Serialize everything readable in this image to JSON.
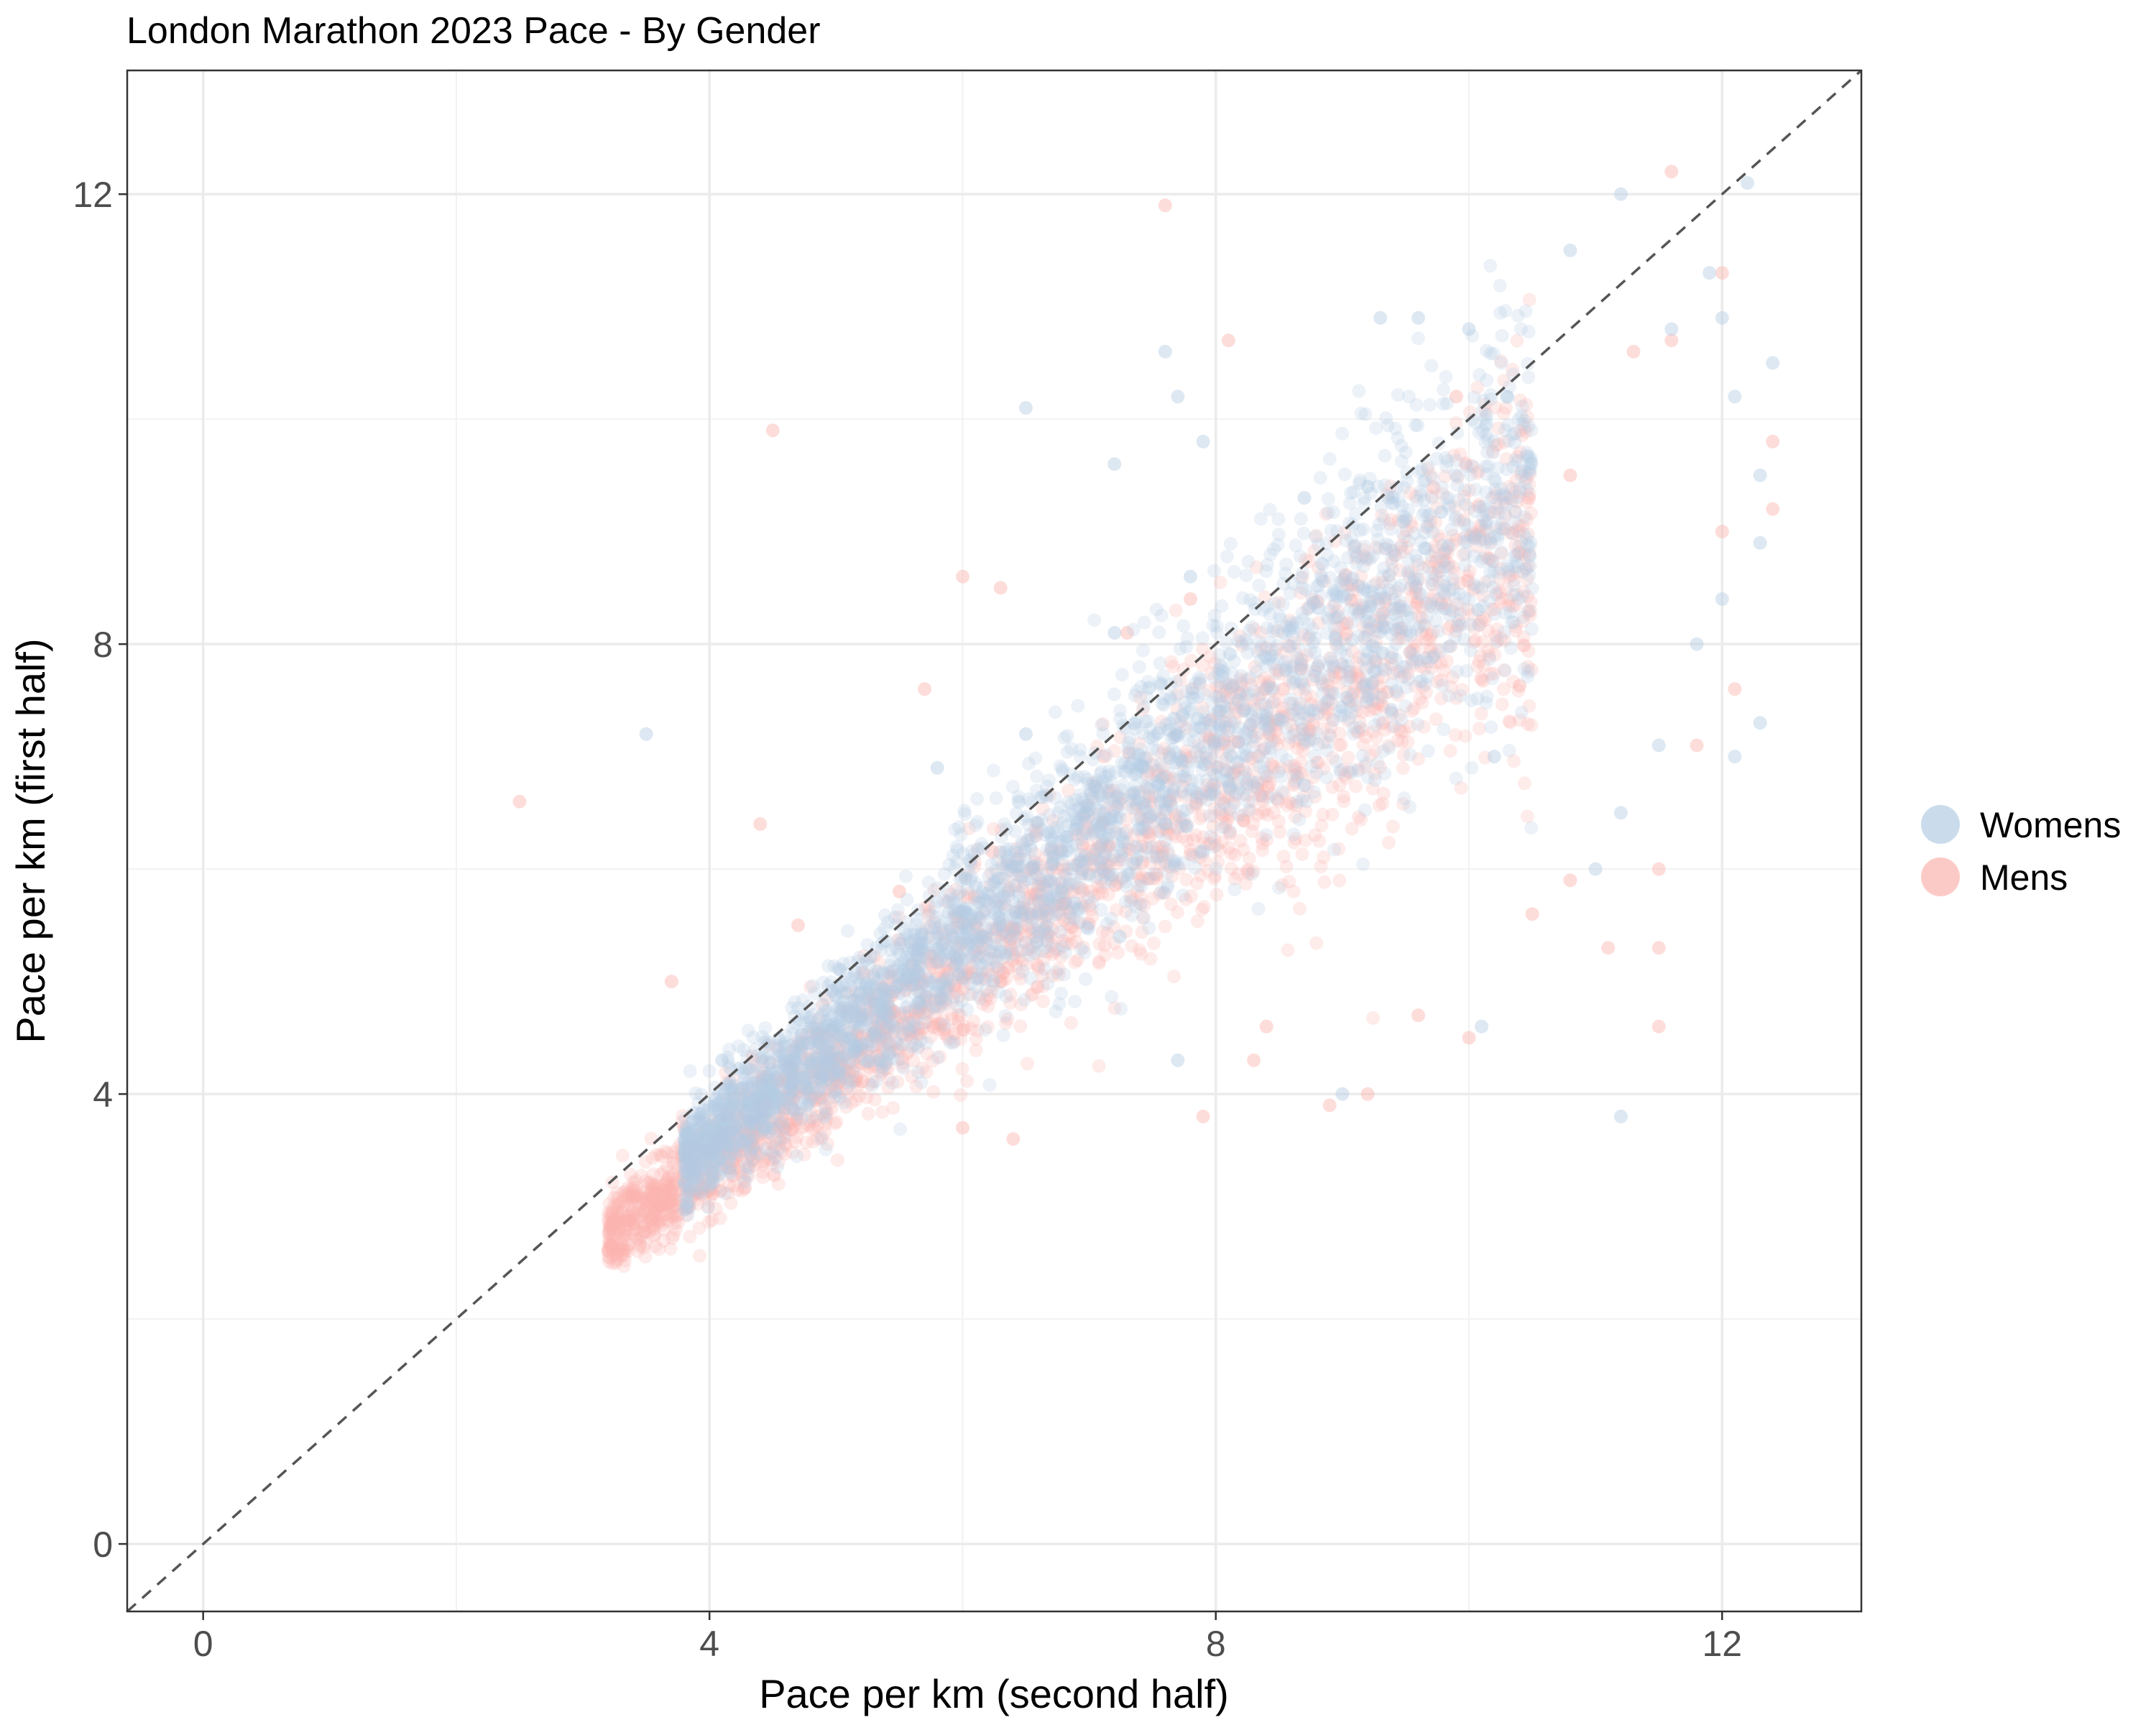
{
  "chart_data": {
    "type": "scatter",
    "title": "London Marathon 2023 Pace - By Gender",
    "xlabel": "Pace per km (second half)",
    "ylabel": "Pace per km (first half)",
    "xlim": [
      -0.6,
      13.1
    ],
    "ylim": [
      -0.6,
      13.1
    ],
    "x_ticks": [
      0,
      4,
      8,
      12
    ],
    "y_ticks": [
      0,
      4,
      8,
      12
    ],
    "grid": true,
    "reference_line": {
      "type": "identity",
      "style": "dashed",
      "color": "#555555"
    },
    "legend": {
      "position": "right",
      "entries": [
        "Womens",
        "Mens"
      ]
    },
    "point_alpha": 0.25,
    "series": [
      {
        "name": "Womens",
        "color": "#b3cde3",
        "approx_count": 18000,
        "core": {
          "x_range": [
            3.8,
            10.5
          ],
          "y_over_x_mean": 0.9,
          "spread": 0.07
        },
        "points": [
          [
            3.5,
            7.2
          ],
          [
            7.6,
            10.6
          ],
          [
            6.5,
            10.1
          ],
          [
            7.7,
            10.2
          ],
          [
            9.3,
            10.9
          ],
          [
            9.6,
            10.9
          ],
          [
            11.2,
            12.0
          ],
          [
            10.8,
            11.5
          ],
          [
            12.2,
            12.1
          ],
          [
            10.0,
            10.8
          ],
          [
            11.9,
            11.3
          ],
          [
            12.0,
            10.9
          ],
          [
            12.4,
            10.5
          ],
          [
            12.3,
            9.5
          ],
          [
            11.2,
            3.8
          ],
          [
            10.1,
            4.6
          ],
          [
            7.7,
            4.3
          ],
          [
            12.3,
            7.3
          ],
          [
            12.1,
            7.0
          ],
          [
            11.5,
            7.1
          ],
          [
            11.0,
            6.0
          ],
          [
            7.2,
            9.6
          ],
          [
            7.9,
            9.8
          ],
          [
            9.2,
            9.4
          ],
          [
            8.7,
            9.3
          ],
          [
            10.3,
            10.2
          ],
          [
            11.6,
            10.8
          ],
          [
            12.1,
            10.2
          ],
          [
            12.0,
            8.4
          ],
          [
            11.8,
            8.0
          ],
          [
            12.3,
            8.9
          ],
          [
            7.2,
            8.1
          ],
          [
            7.8,
            8.6
          ],
          [
            6.5,
            7.2
          ],
          [
            5.8,
            6.9
          ],
          [
            4.1,
            4.3
          ],
          [
            4.8,
            4.2
          ],
          [
            9.0,
            4.0
          ],
          [
            10.2,
            7.0
          ],
          [
            11.2,
            6.5
          ]
        ]
      },
      {
        "name": "Mens",
        "color": "#fbb4ae",
        "approx_count": 28000,
        "core": {
          "x_range": [
            3.2,
            10.5
          ],
          "y_over_x_mean": 0.85,
          "spread": 0.07
        },
        "points": [
          [
            2.5,
            6.6
          ],
          [
            4.4,
            6.4
          ],
          [
            4.5,
            9.9
          ],
          [
            7.6,
            11.9
          ],
          [
            8.1,
            10.7
          ],
          [
            6.0,
            8.6
          ],
          [
            6.3,
            8.5
          ],
          [
            5.7,
            7.6
          ],
          [
            11.6,
            12.2
          ],
          [
            12.0,
            11.3
          ],
          [
            11.6,
            10.7
          ],
          [
            12.4,
            9.8
          ],
          [
            12.4,
            9.2
          ],
          [
            12.1,
            7.6
          ],
          [
            11.8,
            7.1
          ],
          [
            11.5,
            6.0
          ],
          [
            11.5,
            5.3
          ],
          [
            11.5,
            4.6
          ],
          [
            9.2,
            4.0
          ],
          [
            8.9,
            3.9
          ],
          [
            7.9,
            3.8
          ],
          [
            8.3,
            4.3
          ],
          [
            6.4,
            3.6
          ],
          [
            6.0,
            3.7
          ],
          [
            10.5,
            5.6
          ],
          [
            10.8,
            5.9
          ],
          [
            11.1,
            5.3
          ],
          [
            3.7,
            5.0
          ],
          [
            4.7,
            5.5
          ],
          [
            5.5,
            5.8
          ],
          [
            6.3,
            5.0
          ],
          [
            7.3,
            8.1
          ],
          [
            7.8,
            8.4
          ],
          [
            9.9,
            10.2
          ],
          [
            10.8,
            9.5
          ],
          [
            11.3,
            10.6
          ],
          [
            12.0,
            9.0
          ],
          [
            10.0,
            4.5
          ],
          [
            9.6,
            4.7
          ],
          [
            8.4,
            4.6
          ]
        ]
      }
    ]
  }
}
